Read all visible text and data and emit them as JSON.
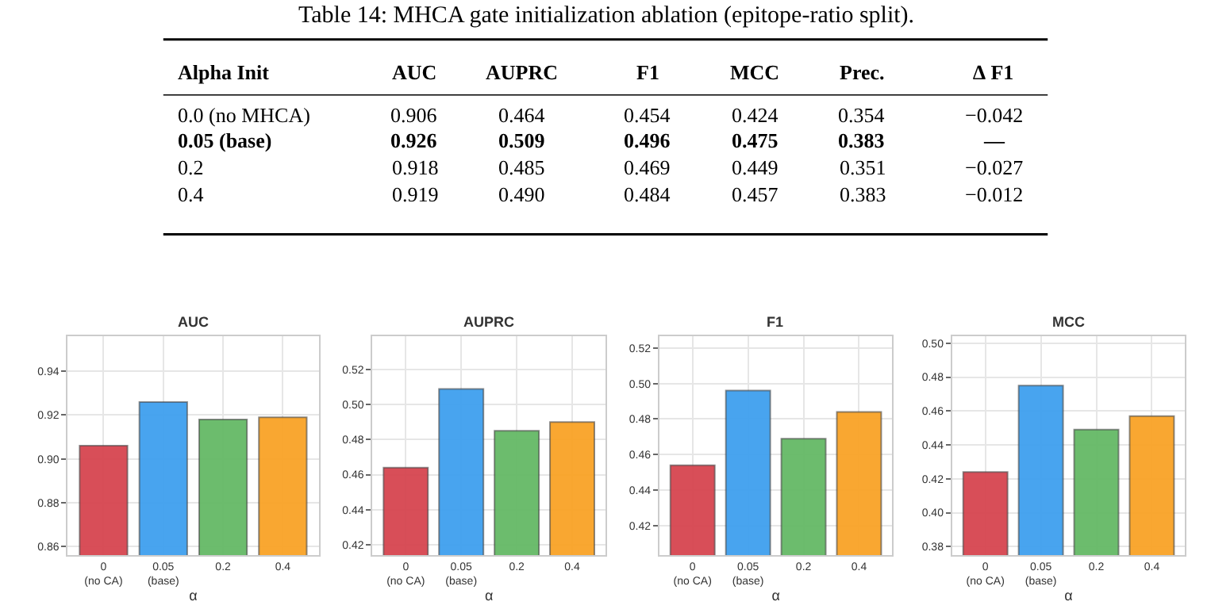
{
  "chart_data": [
    {
      "type": "other",
      "title": "Table 14: MHCA gate initialization ablation (epitope-ratio split).",
      "annotations": [
        "Alpha Init",
        "AUC",
        "AUPRC",
        "F1",
        "MCC",
        "Prec.",
        "∆ F1",
        "0.0 (no MHCA)",
        "0.906",
        "0.464",
        "0.454",
        "0.424",
        "0.354",
        "−0.042",
        "0.05 (base)",
        "0.926",
        "0.509",
        "0.496",
        "0.475",
        "0.383",
        "—",
        "0.2",
        "0.918",
        "0.485",
        "0.469",
        "0.449",
        "0.351",
        "−0.027",
        "0.4",
        "0.919",
        "0.490",
        "0.484",
        "0.457",
        "0.383",
        "−0.012"
      ]
    },
    {
      "type": "bar",
      "title": "AUC",
      "xlabel": "α",
      "categories": [
        "0\n(no CA)",
        "0.05\n(base)",
        "0.2",
        "0.4"
      ],
      "values": [
        0.906,
        0.926,
        0.918,
        0.919
      ],
      "colors": [
        "#d64550",
        "#3fa0ef",
        "#65b966",
        "#f9a326"
      ],
      "ylim": [
        0.856,
        0.956
      ],
      "yticks": [
        {
          "value": 0.86,
          "label": "0.86"
        },
        {
          "value": 0.88,
          "label": "0.88"
        },
        {
          "value": 0.9,
          "label": "0.90"
        },
        {
          "value": 0.92,
          "label": "0.92"
        },
        {
          "value": 0.94,
          "label": "0.94"
        }
      ],
      "grid": true
    },
    {
      "type": "bar",
      "title": "AUPRC",
      "xlabel": "α",
      "categories": [
        "0\n(no CA)",
        "0.05\n(base)",
        "0.2",
        "0.4"
      ],
      "values": [
        0.464,
        0.509,
        0.485,
        0.49
      ],
      "colors": [
        "#d64550",
        "#3fa0ef",
        "#65b966",
        "#f9a326"
      ],
      "ylim": [
        0.414,
        0.539
      ],
      "yticks": [
        {
          "value": 0.42,
          "label": "0.42"
        },
        {
          "value": 0.44,
          "label": "0.44"
        },
        {
          "value": 0.46,
          "label": "0.46"
        },
        {
          "value": 0.48,
          "label": "0.48"
        },
        {
          "value": 0.5,
          "label": "0.50"
        },
        {
          "value": 0.52,
          "label": "0.52"
        }
      ],
      "grid": true
    },
    {
      "type": "bar",
      "title": "F1",
      "xlabel": "α",
      "categories": [
        "0\n(no CA)",
        "0.05\n(base)",
        "0.2",
        "0.4"
      ],
      "values": [
        0.454,
        0.496,
        0.469,
        0.484
      ],
      "colors": [
        "#d64550",
        "#3fa0ef",
        "#65b966",
        "#f9a326"
      ],
      "ylim": [
        0.4035,
        0.5265
      ],
      "yticks": [
        {
          "value": 0.42,
          "label": "0.42"
        },
        {
          "value": 0.44,
          "label": "0.44"
        },
        {
          "value": 0.46,
          "label": "0.46"
        },
        {
          "value": 0.48,
          "label": "0.48"
        },
        {
          "value": 0.5,
          "label": "0.50"
        },
        {
          "value": 0.52,
          "label": "0.52"
        }
      ],
      "grid": true
    },
    {
      "type": "bar",
      "title": "MCC",
      "xlabel": "α",
      "categories": [
        "0\n(no CA)",
        "0.05\n(base)",
        "0.2",
        "0.4"
      ],
      "values": [
        0.424,
        0.475,
        0.449,
        0.457
      ],
      "colors": [
        "#d64550",
        "#3fa0ef",
        "#65b966",
        "#f9a326"
      ],
      "ylim": [
        0.375,
        0.504
      ],
      "yticks": [
        {
          "value": 0.38,
          "label": "0.38"
        },
        {
          "value": 0.4,
          "label": "0.40"
        },
        {
          "value": 0.42,
          "label": "0.42"
        },
        {
          "value": 0.44,
          "label": "0.44"
        },
        {
          "value": 0.46,
          "label": "0.46"
        },
        {
          "value": 0.48,
          "label": "0.48"
        },
        {
          "value": 0.5,
          "label": "0.50"
        }
      ],
      "grid": true
    }
  ]
}
